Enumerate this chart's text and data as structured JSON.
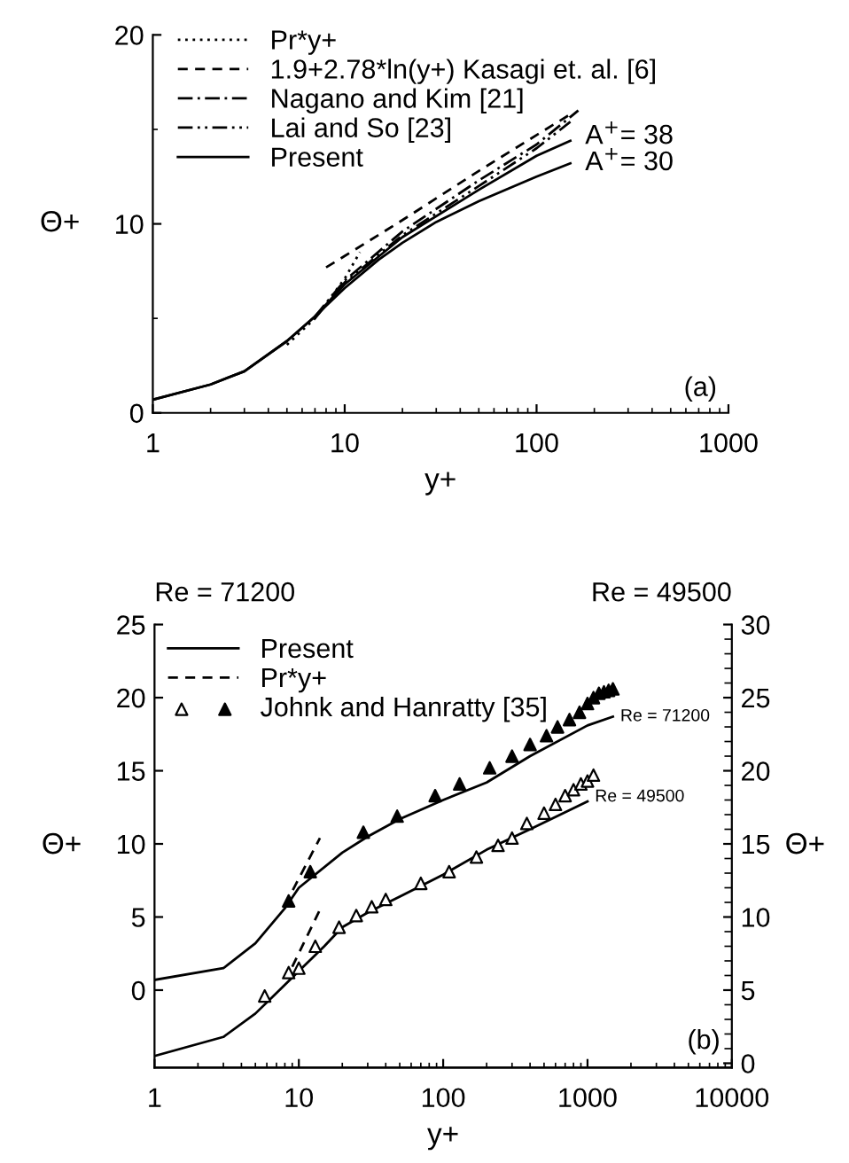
{
  "chart_data": [
    {
      "type": "line",
      "xlabel": "y+",
      "ylabel": "Θ+",
      "log": "x",
      "xlim": [
        1,
        1000
      ],
      "xticks": [
        1,
        10,
        100,
        1000
      ],
      "ylim": [
        0,
        20
      ],
      "yticks": [
        0,
        {
          "value": 5,
          "label": null
        },
        10,
        {
          "value": 15,
          "label": null
        },
        20
      ],
      "legend": "top left",
      "grid": false,
      "annotations": [
        {
          "text": "A$^{+}$= 38",
          "x": 150,
          "y": 14.6
        },
        {
          "text": "A$^{+}$= 30",
          "x": 150,
          "y": 13.2
        },
        "(a)"
      ],
      "series": [
        {
          "name": "Pr*y+",
          "color": "#000000",
          "line_style": "dotted",
          "x": [
            5,
            7,
            10,
            12
          ],
          "values": [
            3.6,
            5.0,
            7.1,
            8.5
          ]
        },
        {
          "name": "1.9+2.78*ln(y+) Kasagi et. al. [6]",
          "color": "#000000",
          "line_style": "dashed",
          "x": [
            8,
            10,
            20,
            50,
            100,
            150
          ],
          "values": [
            7.7,
            8.3,
            10.2,
            12.8,
            14.7,
            15.8
          ]
        },
        {
          "name": "Nagano and Kim [21]",
          "color": "#000000",
          "line_style": "dashdot",
          "x": [
            7,
            10,
            20,
            50,
            100,
            165
          ],
          "values": [
            5.1,
            7.0,
            9.6,
            12.3,
            14.2,
            16.0
          ]
        },
        {
          "name": "Lai and So [23]",
          "color": "#000000",
          "line_style": "dashdotdot",
          "x": [
            7,
            10,
            20,
            50,
            100,
            150
          ],
          "values": [
            5.0,
            6.9,
            9.4,
            12.0,
            14.0,
            15.4
          ]
        },
        {
          "name": "Present",
          "color": "#000000",
          "line_style": "solid",
          "x": [
            1,
            2,
            3,
            5,
            7,
            10,
            20,
            50,
            100,
            150
          ],
          "values": [
            0.7,
            1.5,
            2.2,
            3.8,
            5.1,
            6.8,
            9.3,
            11.8,
            13.6,
            14.4
          ]
        },
        {
          "color": "#000000",
          "line_style": "solid",
          "x": [
            1,
            2,
            3,
            5,
            7,
            10,
            15,
            20,
            30,
            50,
            100,
            150
          ],
          "values": [
            0.7,
            1.5,
            2.2,
            3.8,
            5.1,
            6.6,
            8.1,
            9.0,
            10.1,
            11.2,
            12.5,
            13.2
          ]
        }
      ]
    },
    {
      "type": "line",
      "xlabel": "y+",
      "ylabel": "Θ+",
      "y2label": "Θ+",
      "log": "x",
      "xlim": [
        1,
        10000
      ],
      "xticks": [
        1,
        10,
        100,
        1000,
        10000
      ],
      "ylim": [
        -5.3,
        25
      ],
      "yticks": [
        0,
        5,
        10,
        15,
        20,
        25
      ],
      "y2lim": [
        -0.3,
        30
      ],
      "y2ticks": [
        0,
        {
          "value": 1,
          "label": null
        },
        {
          "value": 2,
          "label": null
        },
        {
          "value": 3,
          "label": null
        },
        {
          "value": 4,
          "label": null
        },
        5,
        {
          "value": 6,
          "label": null
        },
        {
          "value": 7,
          "label": null
        },
        {
          "value": 8,
          "label": null
        },
        {
          "value": 9,
          "label": null
        },
        10,
        {
          "value": 11,
          "label": null
        },
        {
          "value": 12,
          "label": null
        },
        {
          "value": 13,
          "label": null
        },
        {
          "value": 14,
          "label": null
        },
        15,
        {
          "value": 16,
          "label": null
        },
        {
          "value": 17,
          "label": null
        },
        {
          "value": 18,
          "label": null
        },
        {
          "value": 19,
          "label": null
        },
        20,
        {
          "value": 21,
          "label": null
        },
        {
          "value": 22,
          "label": null
        },
        {
          "value": 23,
          "label": null
        },
        {
          "value": 24,
          "label": null
        },
        25,
        {
          "value": 26,
          "label": null
        },
        {
          "value": 27,
          "label": null
        },
        {
          "value": 28,
          "label": null
        },
        {
          "value": 29,
          "label": null
        },
        30
      ],
      "legend": "top left",
      "grid": false,
      "annotations": [
        "Re = 71200",
        "Re = 49500",
        {
          "text": "Re = 71200",
          "x": 1500,
          "y": 18.7
        },
        {
          "text": "Re = 49500",
          "x": 1000,
          "y": 13.2
        },
        "(b)"
      ],
      "series": [
        {
          "name": "Present",
          "color": "#000000",
          "line_style": "solid",
          "x": [
            1,
            3,
            5,
            8,
            10,
            20,
            30,
            50,
            100,
            200,
            400,
            1000,
            1500
          ],
          "values": [
            0.7,
            1.5,
            3.2,
            5.6,
            7.0,
            9.4,
            10.5,
            11.7,
            13.0,
            14.2,
            16.0,
            18.1,
            18.7
          ]
        },
        {
          "color": "#000000",
          "line_style": "solid",
          "axis": "y2",
          "x": [
            1,
            3,
            5,
            7,
            10,
            15,
            20,
            30,
            50,
            100,
            200,
            400,
            1000
          ],
          "values": [
            0.5,
            1.8,
            3.4,
            4.8,
            6.3,
            8.0,
            9.3,
            10.3,
            11.4,
            12.9,
            14.6,
            16.0,
            17.9
          ]
        },
        {
          "name": "Pr*y+",
          "color": "#000000",
          "line_style": "dashed",
          "x": [
            8,
            14
          ],
          "values": [
            5.8,
            10.4
          ]
        },
        {
          "color": "#000000",
          "line_style": "dashed",
          "axis": "y2",
          "x": [
            9,
            14
          ],
          "values": [
            6.6,
            10.5
          ]
        },
        {
          "type": "scatter",
          "marker": "triangle",
          "color": "#ffffff",
          "axis": "y2",
          "x": [
            5.8,
            8.5,
            10,
            13,
            19,
            25,
            32,
            40,
            70,
            110,
            170,
            240,
            300,
            380,
            500,
            600,
            700,
            800,
            900,
            1000,
            1100
          ],
          "values": [
            4.6,
            6.2,
            6.5,
            8.0,
            9.3,
            10.1,
            10.7,
            11.2,
            12.3,
            13.1,
            14.1,
            14.9,
            15.4,
            16.4,
            17.1,
            17.7,
            18.3,
            18.7,
            19.1,
            19.3,
            19.7
          ]
        },
        {
          "name": "Johnk and Hanratty [35]",
          "type": "scatter",
          "marker": "triangle",
          "color": "#000000",
          "x": [
            8.5,
            12,
            28,
            48,
            88,
            130,
            210,
            300,
            400,
            520,
            620,
            750,
            880,
            1000,
            1100,
            1200,
            1300,
            1400,
            1500
          ],
          "values": [
            6.1,
            8.1,
            10.8,
            11.9,
            13.3,
            14.1,
            15.2,
            16.0,
            16.8,
            17.4,
            18.0,
            18.5,
            19.0,
            19.6,
            20.0,
            20.3,
            20.4,
            20.5,
            20.6
          ]
        }
      ]
    }
  ]
}
